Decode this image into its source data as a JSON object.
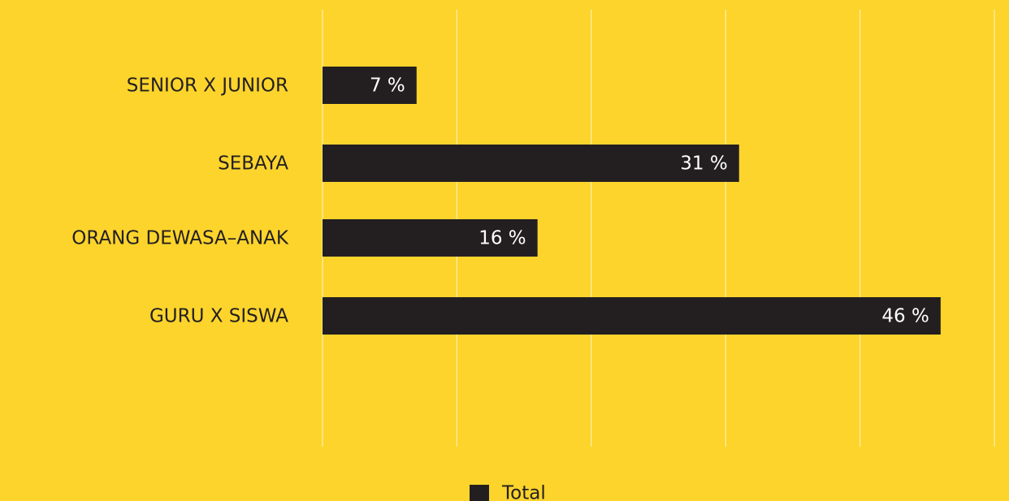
{
  "chart_data": {
    "type": "bar",
    "orientation": "horizontal",
    "categories": [
      "SENIOR X JUNIOR",
      "SEBAYA",
      "ORANG DEWASA–ANAK",
      "GURU X SISWA"
    ],
    "series": [
      {
        "name": "Total",
        "color": "#231f20",
        "values": [
          7,
          31,
          16,
          46
        ],
        "value_labels": [
          "7 %",
          "31 %",
          "16 %",
          "46 %"
        ]
      }
    ],
    "xlim": [
      0,
      50
    ],
    "xticks": [
      0,
      10,
      20,
      30,
      40,
      50
    ],
    "grid": true,
    "legend": "bottom"
  }
}
